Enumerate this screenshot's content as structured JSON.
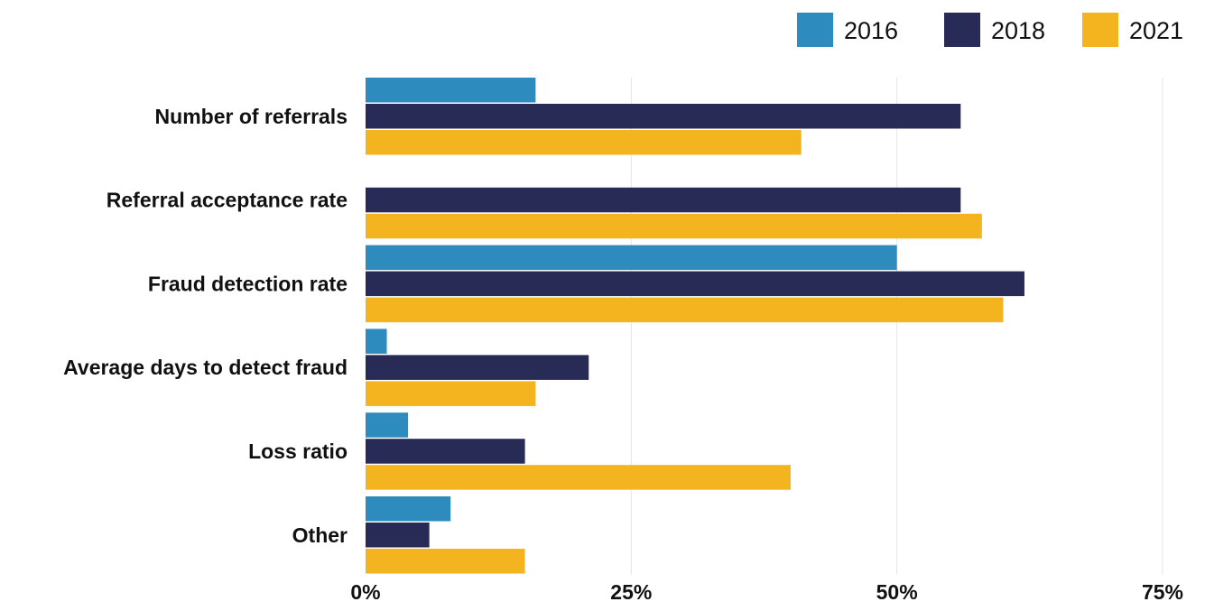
{
  "chart_data": {
    "type": "bar",
    "orientation": "horizontal",
    "categories": [
      "Number of referrals",
      "Referral acceptance rate",
      "Fraud detection rate",
      "Average days to detect fraud",
      "Loss ratio",
      "Other"
    ],
    "series": [
      {
        "name": "2016",
        "color": "#2e8bbd",
        "values": [
          16,
          0,
          50,
          2,
          4,
          8
        ]
      },
      {
        "name": "2018",
        "color": "#272b55",
        "values": [
          56,
          56,
          62,
          21,
          15,
          6
        ]
      },
      {
        "name": "2021",
        "color": "#f4b41f",
        "values": [
          41,
          58,
          60,
          16,
          40,
          15
        ]
      }
    ],
    "xlim": [
      0,
      75
    ],
    "xticks": [
      "0%",
      "25%",
      "50%",
      "75%"
    ],
    "grid": true,
    "legend_position": "top-right",
    "title": "",
    "xlabel": "",
    "ylabel": ""
  }
}
